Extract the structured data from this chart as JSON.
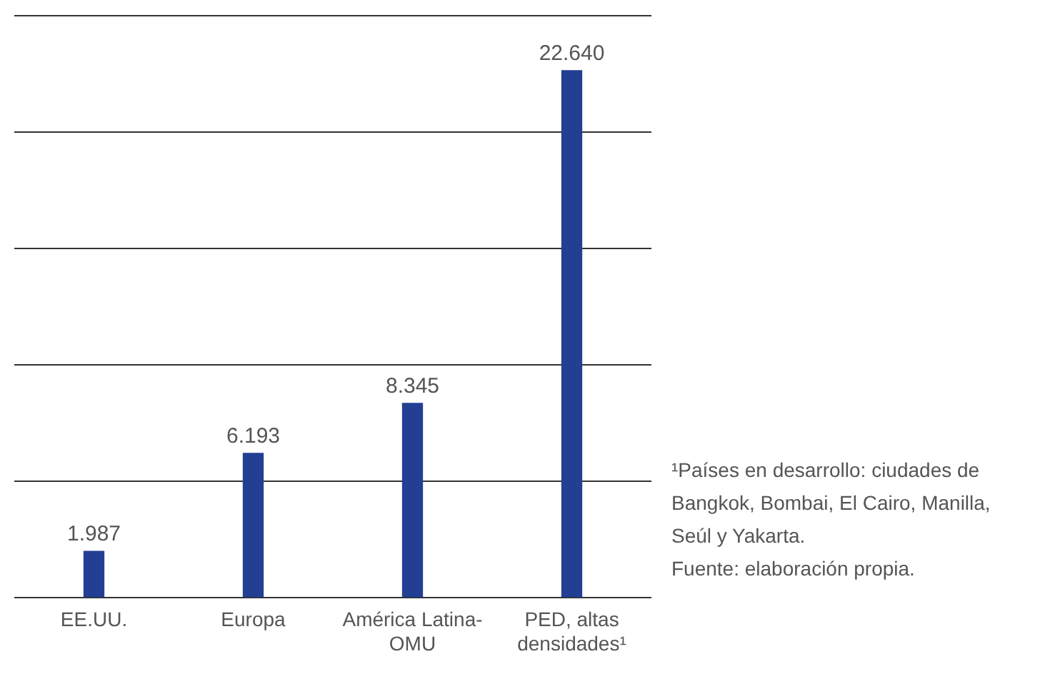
{
  "chart_data": {
    "type": "bar",
    "categories": [
      "EE.UU.",
      "Europa",
      "América Latina-OMU",
      "PED, altas densidades¹"
    ],
    "values": [
      1987,
      6193,
      8345,
      22640
    ],
    "value_labels": [
      "1.987",
      "6.193",
      "8.345",
      "22.640"
    ],
    "color": "#233f94",
    "ylim": [
      0,
      25000
    ],
    "yticks": [
      {
        "value": 0,
        "label": null
      },
      {
        "value": 5000,
        "label": null
      },
      {
        "value": 10000,
        "label": null
      },
      {
        "value": 15000,
        "label": null
      },
      {
        "value": 20000,
        "label": null
      },
      {
        "value": 25000,
        "label": null
      }
    ],
    "tick_labels": "x",
    "grid": "y",
    "legend": false,
    "annotations": [
      "¹Países en desarrollo: ciudades de Bangkok, Bombai, El Cairo, Manilla, Seúl y Yakarta.",
      "Fuente: elaboración propia."
    ]
  }
}
